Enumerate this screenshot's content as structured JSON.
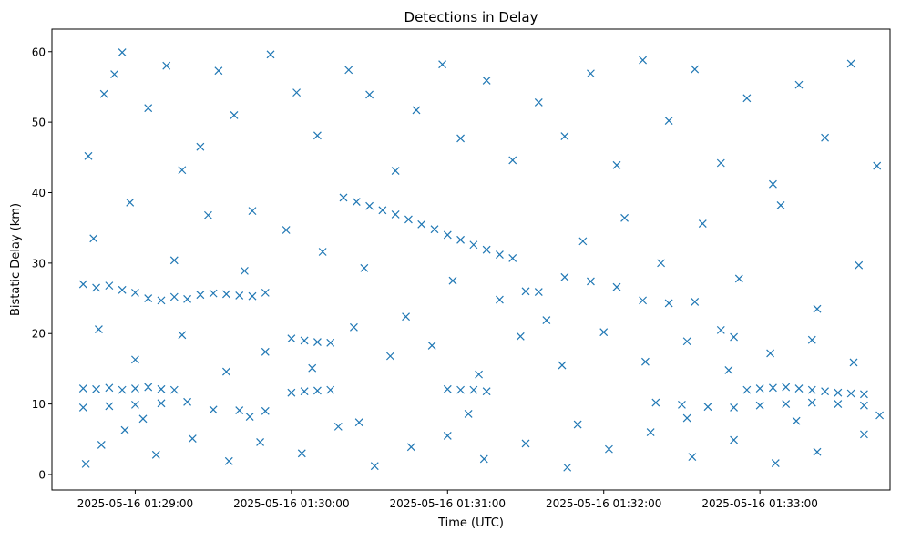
{
  "chart_data": {
    "type": "scatter",
    "title": "Detections in Delay",
    "xlabel": "Time (UTC)",
    "ylabel": "Bistatic Delay (km)",
    "x_unit": "UTC datetime",
    "xlim": [
      "2025-05-16 01:28:28",
      "2025-05-16 01:33:50"
    ],
    "ylim": [
      -2.2,
      63.2
    ],
    "x_ticks": [
      "2025-05-16 01:29:00",
      "2025-05-16 01:30:00",
      "2025-05-16 01:31:00",
      "2025-05-16 01:32:00",
      "2025-05-16 01:33:00"
    ],
    "y_ticks": [
      0,
      10,
      20,
      30,
      40,
      50,
      60
    ],
    "grid": false,
    "legend": "none",
    "marker": "x",
    "color": "#1f77b4",
    "series": [
      {
        "points": [
          [
            "01:28:40",
            27.0
          ],
          [
            "01:28:45",
            26.5
          ],
          [
            "01:28:50",
            26.8
          ],
          [
            "01:28:55",
            26.2
          ],
          [
            "01:29:00",
            25.8
          ],
          [
            "01:29:05",
            25.0
          ],
          [
            "01:29:10",
            24.7
          ],
          [
            "01:29:15",
            25.2
          ],
          [
            "01:29:20",
            24.9
          ],
          [
            "01:29:25",
            25.5
          ],
          [
            "01:29:30",
            25.7
          ],
          [
            "01:29:35",
            25.6
          ],
          [
            "01:29:40",
            25.4
          ],
          [
            "01:29:45",
            25.3
          ],
          [
            "01:29:50",
            25.8
          ],
          [
            "01:28:40",
            12.2
          ],
          [
            "01:28:45",
            12.1
          ],
          [
            "01:28:50",
            12.3
          ],
          [
            "01:28:55",
            12.0
          ],
          [
            "01:29:00",
            12.2
          ],
          [
            "01:29:05",
            12.4
          ],
          [
            "01:29:10",
            12.1
          ],
          [
            "01:29:15",
            12.0
          ],
          [
            "01:28:40",
            9.5
          ],
          [
            "01:28:50",
            9.7
          ],
          [
            "01:29:00",
            9.9
          ],
          [
            "01:29:10",
            10.1
          ],
          [
            "01:29:20",
            10.3
          ],
          [
            "01:29:30",
            9.2
          ],
          [
            "01:29:40",
            9.1
          ],
          [
            "01:29:50",
            9.0
          ],
          [
            "01:30:00",
            11.6
          ],
          [
            "01:30:05",
            11.8
          ],
          [
            "01:30:10",
            11.9
          ],
          [
            "01:30:15",
            12.0
          ],
          [
            "01:30:00",
            19.3
          ],
          [
            "01:30:05",
            19.0
          ],
          [
            "01:30:10",
            18.8
          ],
          [
            "01:30:15",
            18.7
          ],
          [
            "01:30:20",
            39.3
          ],
          [
            "01:30:25",
            38.7
          ],
          [
            "01:30:30",
            38.1
          ],
          [
            "01:30:35",
            37.5
          ],
          [
            "01:30:40",
            36.9
          ],
          [
            "01:30:45",
            36.2
          ],
          [
            "01:30:50",
            35.5
          ],
          [
            "01:30:55",
            34.8
          ],
          [
            "01:31:00",
            34.0
          ],
          [
            "01:31:05",
            33.3
          ],
          [
            "01:31:10",
            32.6
          ],
          [
            "01:31:15",
            31.9
          ],
          [
            "01:31:20",
            31.2
          ],
          [
            "01:31:25",
            30.7
          ],
          [
            "01:31:30",
            26.0
          ],
          [
            "01:31:35",
            25.9
          ],
          [
            "01:31:45",
            28.0
          ],
          [
            "01:31:55",
            27.4
          ],
          [
            "01:32:05",
            26.6
          ],
          [
            "01:32:15",
            24.7
          ],
          [
            "01:32:25",
            24.3
          ],
          [
            "01:32:35",
            24.5
          ],
          [
            "01:32:45",
            20.5
          ],
          [
            "01:32:50",
            19.5
          ],
          [
            "01:32:55",
            12.0
          ],
          [
            "01:33:00",
            12.2
          ],
          [
            "01:33:05",
            12.3
          ],
          [
            "01:33:10",
            12.4
          ],
          [
            "01:33:15",
            12.2
          ],
          [
            "01:33:20",
            12.0
          ],
          [
            "01:33:25",
            11.8
          ],
          [
            "01:33:30",
            11.6
          ],
          [
            "01:33:35",
            11.5
          ],
          [
            "01:33:40",
            11.4
          ],
          [
            "01:31:00",
            12.1
          ],
          [
            "01:31:05",
            12.0
          ],
          [
            "01:31:10",
            12.0
          ],
          [
            "01:31:15",
            11.8
          ],
          [
            "01:32:20",
            10.2
          ],
          [
            "01:32:30",
            9.9
          ],
          [
            "01:32:40",
            9.6
          ],
          [
            "01:32:50",
            9.5
          ],
          [
            "01:33:00",
            9.8
          ],
          [
            "01:33:10",
            10.0
          ],
          [
            "01:33:20",
            10.2
          ],
          [
            "01:33:30",
            10.0
          ],
          [
            "01:33:40",
            9.8
          ],
          [
            "01:28:42",
            45.2
          ],
          [
            "01:28:48",
            54.0
          ],
          [
            "01:28:52",
            56.8
          ],
          [
            "01:28:55",
            59.9
          ],
          [
            "01:29:05",
            52.0
          ],
          [
            "01:29:12",
            58.0
          ],
          [
            "01:29:18",
            43.2
          ],
          [
            "01:29:25",
            46.5
          ],
          [
            "01:29:32",
            57.3
          ],
          [
            "01:29:38",
            51.0
          ],
          [
            "01:29:45",
            37.4
          ],
          [
            "01:29:52",
            59.6
          ],
          [
            "01:30:02",
            54.2
          ],
          [
            "01:30:10",
            48.1
          ],
          [
            "01:30:22",
            57.4
          ],
          [
            "01:30:30",
            53.9
          ],
          [
            "01:30:40",
            43.1
          ],
          [
            "01:30:48",
            51.7
          ],
          [
            "01:30:58",
            58.2
          ],
          [
            "01:31:05",
            47.7
          ],
          [
            "01:31:15",
            55.9
          ],
          [
            "01:31:25",
            44.6
          ],
          [
            "01:31:35",
            52.8
          ],
          [
            "01:31:45",
            48.0
          ],
          [
            "01:31:55",
            56.9
          ],
          [
            "01:32:05",
            43.9
          ],
          [
            "01:32:15",
            58.8
          ],
          [
            "01:32:25",
            50.2
          ],
          [
            "01:32:35",
            57.5
          ],
          [
            "01:32:45",
            44.2
          ],
          [
            "01:32:55",
            53.4
          ],
          [
            "01:33:05",
            41.2
          ],
          [
            "01:33:15",
            55.3
          ],
          [
            "01:33:25",
            47.8
          ],
          [
            "01:33:35",
            58.3
          ],
          [
            "01:33:45",
            43.8
          ],
          [
            "01:28:44",
            33.5
          ],
          [
            "01:28:58",
            38.6
          ],
          [
            "01:29:15",
            30.4
          ],
          [
            "01:29:28",
            36.8
          ],
          [
            "01:29:42",
            28.9
          ],
          [
            "01:29:58",
            34.7
          ],
          [
            "01:30:12",
            31.6
          ],
          [
            "01:30:28",
            29.3
          ],
          [
            "01:30:44",
            22.4
          ],
          [
            "01:31:02",
            27.5
          ],
          [
            "01:31:20",
            24.8
          ],
          [
            "01:31:38",
            21.9
          ],
          [
            "01:31:52",
            33.1
          ],
          [
            "01:32:08",
            36.4
          ],
          [
            "01:32:22",
            30.0
          ],
          [
            "01:32:38",
            35.6
          ],
          [
            "01:32:52",
            27.8
          ],
          [
            "01:33:08",
            38.2
          ],
          [
            "01:33:22",
            23.5
          ],
          [
            "01:33:38",
            29.7
          ],
          [
            "01:28:46",
            20.6
          ],
          [
            "01:29:00",
            16.3
          ],
          [
            "01:29:18",
            19.8
          ],
          [
            "01:29:35",
            14.6
          ],
          [
            "01:29:50",
            17.4
          ],
          [
            "01:30:08",
            15.1
          ],
          [
            "01:30:24",
            20.9
          ],
          [
            "01:30:38",
            16.8
          ],
          [
            "01:30:54",
            18.3
          ],
          [
            "01:31:12",
            14.2
          ],
          [
            "01:31:28",
            19.6
          ],
          [
            "01:31:44",
            15.5
          ],
          [
            "01:32:00",
            20.2
          ],
          [
            "01:32:16",
            16.0
          ],
          [
            "01:32:32",
            18.9
          ],
          [
            "01:32:48",
            14.8
          ],
          [
            "01:33:04",
            17.2
          ],
          [
            "01:33:20",
            19.1
          ],
          [
            "01:33:36",
            15.9
          ],
          [
            "01:28:41",
            1.5
          ],
          [
            "01:28:47",
            4.2
          ],
          [
            "01:28:56",
            6.3
          ],
          [
            "01:29:08",
            2.8
          ],
          [
            "01:29:22",
            5.1
          ],
          [
            "01:29:36",
            1.9
          ],
          [
            "01:29:48",
            4.6
          ],
          [
            "01:30:04",
            3.0
          ],
          [
            "01:30:18",
            6.8
          ],
          [
            "01:30:32",
            1.2
          ],
          [
            "01:30:46",
            3.9
          ],
          [
            "01:31:00",
            5.5
          ],
          [
            "01:31:14",
            2.2
          ],
          [
            "01:31:30",
            4.4
          ],
          [
            "01:31:46",
            1.0
          ],
          [
            "01:32:02",
            3.6
          ],
          [
            "01:32:18",
            6.0
          ],
          [
            "01:32:34",
            2.5
          ],
          [
            "01:32:50",
            4.9
          ],
          [
            "01:33:06",
            1.6
          ],
          [
            "01:33:22",
            3.2
          ],
          [
            "01:33:40",
            5.7
          ],
          [
            "01:29:03",
            7.9
          ],
          [
            "01:29:44",
            8.2
          ],
          [
            "01:30:26",
            7.4
          ],
          [
            "01:31:08",
            8.6
          ],
          [
            "01:31:50",
            7.1
          ],
          [
            "01:32:32",
            8.0
          ],
          [
            "01:33:14",
            7.6
          ],
          [
            "01:33:46",
            8.4
          ]
        ]
      }
    ]
  }
}
